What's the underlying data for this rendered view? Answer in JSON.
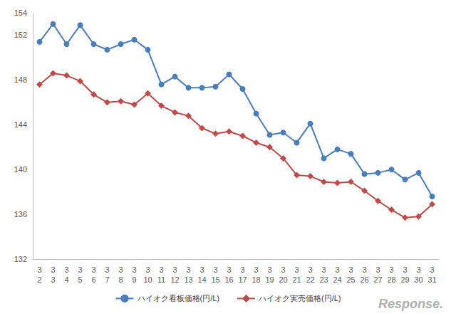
{
  "chart_data": {
    "type": "line",
    "categories": [
      "3\n2",
      "3\n3",
      "3\n4",
      "3\n5",
      "3\n6",
      "3\n7",
      "3\n8",
      "3\n9",
      "3\n10",
      "3\n11",
      "3\n12",
      "3\n13",
      "3\n14",
      "3\n15",
      "3\n16",
      "3\n17",
      "3\n18",
      "3\n19",
      "3\n20",
      "3\n21",
      "3\n22",
      "3\n23",
      "3\n24",
      "3\n25",
      "3\n26",
      "3\n27",
      "3\n28",
      "3\n29",
      "3\n30",
      "3\n31"
    ],
    "series": [
      {
        "name": "ハイオク看板価格(円/L)",
        "color": "#4a7ebb",
        "marker": "circle",
        "values": [
          151.4,
          153.0,
          151.2,
          152.9,
          151.2,
          150.7,
          151.2,
          151.6,
          150.7,
          147.6,
          148.3,
          147.3,
          147.3,
          147.4,
          148.5,
          147.2,
          145.0,
          143.1,
          143.3,
          142.4,
          144.1,
          141.0,
          141.8,
          141.4,
          139.6,
          139.7,
          140.0,
          139.1,
          139.7,
          137.6
        ]
      },
      {
        "name": "ハイオク実売価格(円/L)",
        "color": "#be4b48",
        "marker": "diamond",
        "values": [
          147.6,
          148.6,
          148.4,
          147.9,
          146.7,
          146.0,
          146.1,
          145.8,
          146.8,
          145.7,
          145.1,
          144.8,
          143.7,
          143.2,
          143.4,
          143.0,
          142.4,
          142.0,
          141.0,
          139.5,
          139.4,
          138.9,
          138.8,
          138.9,
          138.1,
          137.2,
          136.4,
          135.7,
          135.8,
          136.9
        ]
      }
    ],
    "ylim": [
      132,
      154
    ],
    "yticks": [
      132,
      136,
      140,
      144,
      148,
      152
    ],
    "grid": false,
    "legend": "bottom",
    "annotations": [
      "Response."
    ]
  }
}
